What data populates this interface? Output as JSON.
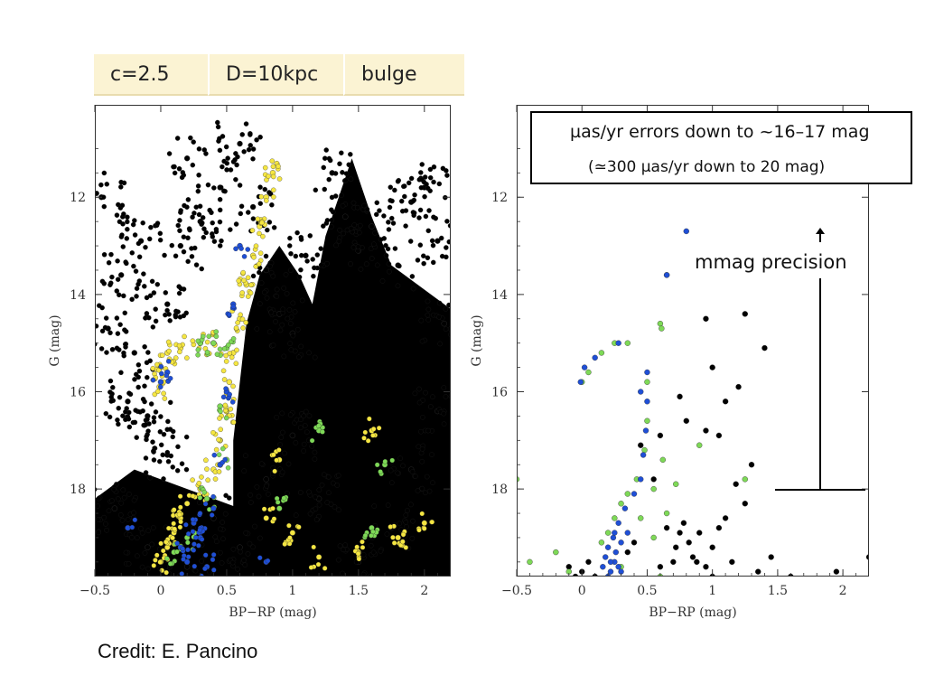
{
  "params": [
    "c=2.5",
    "D=10kpc",
    "bulge"
  ],
  "info_box": {
    "line1": "µas/yr errors down to ~16–17 mag",
    "line2": "(≃300 µas/yr down to 20 mag)"
  },
  "precision_label": "mmag precision",
  "credit": "Credit: E. Pancino",
  "colors": {
    "field_stars": "#000000",
    "cluster_yellow": "#f5e642",
    "cluster_green": "#7ed957",
    "cluster_blue": "#1f4fd6",
    "param_box_bg": "#fbf3d3"
  },
  "chart_data": [
    {
      "type": "scatter",
      "panel": "left",
      "xlabel": "BP−RP (mag)",
      "ylabel": "G (mag)",
      "xlim": [
        -0.5,
        2.2
      ],
      "ylim": [
        19.8,
        10.1
      ],
      "y_inverted": true,
      "xticks": [
        "−0.5",
        "0",
        "0.5",
        "1",
        "1.5",
        "2"
      ],
      "yticks": [
        "12",
        "14",
        "16",
        "18"
      ],
      "series": [
        {
          "color": "black",
          "description_points": [
            [
              -0.45,
              12
            ],
            [
              -0.3,
              13.6
            ],
            [
              -0.2,
              15.2
            ],
            [
              -0.1,
              16.5
            ],
            [
              0.05,
              17.3
            ],
            [
              0.2,
              11.2
            ],
            [
              0.3,
              12.5
            ],
            [
              0.45,
              11.8
            ],
            [
              0.6,
              10.9
            ],
            [
              0.7,
              12.2
            ],
            [
              0.8,
              13.5
            ],
            [
              0.9,
              14.4
            ],
            [
              1.0,
              14.8
            ],
            [
              1.1,
              13.2
            ],
            [
              1.3,
              11.5
            ],
            [
              1.4,
              12.4
            ],
            [
              1.5,
              13.1
            ],
            [
              1.6,
              12.6
            ],
            [
              1.8,
              13.4
            ],
            [
              1.9,
              12.1
            ],
            [
              2.0,
              11.8
            ],
            [
              2.1,
              12.9
            ],
            [
              2.15,
              14.6
            ],
            [
              2.1,
              16.4
            ],
            [
              1.9,
              17.6
            ],
            [
              1.75,
              18.8
            ],
            [
              1.5,
              19.5
            ],
            [
              1.2,
              18.2
            ],
            [
              1.0,
              16.9
            ],
            [
              0.8,
              17.8
            ],
            [
              0.6,
              19.2
            ],
            [
              0.4,
              18.6
            ],
            [
              0.2,
              19.6
            ],
            [
              -0.1,
              19.2
            ],
            [
              -0.35,
              18.4
            ],
            [
              -0.25,
              16.2
            ],
            [
              0.05,
              14.2
            ],
            [
              0.15,
              13.0
            ],
            [
              -0.4,
              14.7
            ],
            [
              -0.15,
              12.9
            ]
          ]
        },
        {
          "color": "yellow",
          "description_points": [
            [
              0.0,
              19.5
            ],
            [
              0.05,
              19.2
            ],
            [
              0.1,
              18.9
            ],
            [
              0.15,
              18.6
            ],
            [
              0.2,
              18.3
            ],
            [
              0.3,
              18.0
            ],
            [
              0.4,
              17.6
            ],
            [
              0.45,
              17.0
            ],
            [
              0.5,
              16.4
            ],
            [
              0.52,
              15.8
            ],
            [
              0.55,
              15.2
            ],
            [
              0.6,
              14.5
            ],
            [
              0.65,
              13.8
            ],
            [
              0.7,
              13.2
            ],
            [
              0.75,
              12.6
            ],
            [
              0.8,
              12.0
            ],
            [
              0.85,
              11.5
            ],
            [
              0.0,
              15.5
            ],
            [
              -0.01,
              15.9
            ],
            [
              0.05,
              15.2
            ],
            [
              0.15,
              15.1
            ],
            [
              0.3,
              15.0
            ],
            [
              0.4,
              15.0
            ],
            [
              0.8,
              18.6
            ],
            [
              1.0,
              18.9
            ],
            [
              1.2,
              19.4
            ],
            [
              1.5,
              19.3
            ],
            [
              1.8,
              19.0
            ],
            [
              2.0,
              18.7
            ],
            [
              0.9,
              17.4
            ],
            [
              1.6,
              16.8
            ]
          ]
        },
        {
          "color": "green",
          "description_points": [
            [
              0.3,
              15.0
            ],
            [
              0.4,
              15.0
            ],
            [
              0.5,
              15.1
            ],
            [
              0.2,
              19.0
            ],
            [
              0.35,
              18.2
            ],
            [
              0.5,
              17.4
            ],
            [
              0.9,
              18.4
            ],
            [
              1.2,
              16.8
            ],
            [
              1.6,
              18.8
            ],
            [
              1.7,
              17.5
            ],
            [
              0.1,
              19.3
            ],
            [
              0.45,
              16.3
            ]
          ]
        },
        {
          "color": "blue",
          "description_points": [
            [
              0.0,
              15.8
            ],
            [
              0.05,
              15.6
            ],
            [
              0.15,
              19.2
            ],
            [
              0.2,
              19.5
            ],
            [
              0.25,
              18.7
            ],
            [
              0.3,
              19.0
            ],
            [
              0.35,
              19.6
            ],
            [
              0.4,
              18.4
            ],
            [
              0.45,
              17.5
            ],
            [
              0.5,
              16.0
            ],
            [
              0.55,
              14.2
            ],
            [
              0.6,
              13.0
            ],
            [
              -0.25,
              18.8
            ],
            [
              0.8,
              19.5
            ]
          ]
        }
      ]
    },
    {
      "type": "scatter",
      "panel": "right",
      "xlabel": "BP−RP (mag)",
      "ylabel": "G (mag)",
      "xlim": [
        -0.5,
        2.2
      ],
      "ylim": [
        19.8,
        10.1
      ],
      "y_inverted": true,
      "xticks": [
        "−0.5",
        "0",
        "0.5",
        "1",
        "1.5",
        "2"
      ],
      "yticks": [
        "12",
        "14",
        "16",
        "18"
      ],
      "series": [
        {
          "color": "black",
          "points": [
            [
              0.82,
              19.1
            ],
            [
              0.78,
              18.7
            ],
            [
              0.9,
              18.9
            ],
            [
              1.0,
              19.2
            ],
            [
              0.7,
              19.5
            ],
            [
              0.85,
              19.4
            ],
            [
              1.1,
              18.6
            ],
            [
              0.95,
              19.6
            ],
            [
              0.75,
              18.9
            ],
            [
              1.05,
              18.8
            ],
            [
              0.88,
              19.5
            ],
            [
              0.72,
              19.2
            ],
            [
              1.15,
              19.5
            ],
            [
              0.6,
              19.6
            ],
            [
              0.65,
              18.8
            ],
            [
              1.0,
              15.5
            ],
            [
              0.95,
              16.8
            ],
            [
              1.2,
              15.9
            ],
            [
              1.25,
              14.4
            ],
            [
              1.4,
              15.1
            ],
            [
              1.1,
              16.2
            ],
            [
              1.05,
              16.9
            ],
            [
              0.75,
              16.1
            ],
            [
              0.8,
              16.6
            ],
            [
              0.6,
              16.9
            ],
            [
              1.3,
              17.5
            ],
            [
              1.18,
              17.9
            ],
            [
              1.25,
              18.3
            ],
            [
              1.45,
              19.4
            ],
            [
              1.6,
              19.8
            ],
            [
              1.95,
              19.7
            ],
            [
              2.2,
              19.4
            ],
            [
              1.35,
              19.7
            ],
            [
              0.0,
              19.7
            ],
            [
              0.05,
              19.5
            ],
            [
              -0.1,
              19.6
            ],
            [
              0.1,
              19.8
            ],
            [
              1.0,
              19.8
            ],
            [
              0.45,
              17.1
            ],
            [
              0.55,
              17.8
            ],
            [
              0.95,
              14.5
            ],
            [
              0.35,
              19.3
            ],
            [
              0.4,
              19.1
            ],
            [
              -0.05,
              19.8
            ]
          ]
        },
        {
          "color": "green",
          "points": [
            [
              -0.5,
              17.8
            ],
            [
              -0.4,
              19.5
            ],
            [
              -0.2,
              19.3
            ],
            [
              -0.1,
              19.7
            ],
            [
              0.0,
              15.8
            ],
            [
              0.05,
              15.6
            ],
            [
              0.15,
              15.2
            ],
            [
              0.25,
              15.0
            ],
            [
              0.35,
              15.0
            ],
            [
              0.6,
              14.6
            ],
            [
              0.61,
              14.7
            ],
            [
              0.65,
              13.6
            ],
            [
              0.5,
              15.8
            ],
            [
              0.5,
              16.6
            ],
            [
              0.48,
              17.2
            ],
            [
              0.42,
              17.8
            ],
            [
              0.35,
              18.1
            ],
            [
              0.3,
              18.3
            ],
            [
              0.25,
              18.6
            ],
            [
              0.2,
              18.9
            ],
            [
              0.15,
              19.1
            ],
            [
              0.55,
              18.0
            ],
            [
              0.45,
              18.6
            ],
            [
              0.65,
              18.5
            ],
            [
              0.55,
              19.0
            ],
            [
              0.62,
              17.4
            ],
            [
              0.72,
              17.9
            ],
            [
              0.9,
              17.1
            ],
            [
              1.25,
              17.8
            ],
            [
              0.3,
              19.6
            ],
            [
              0.6,
              19.8
            ]
          ]
        },
        {
          "color": "blue",
          "points": [
            [
              0.8,
              12.7
            ],
            [
              0.65,
              13.6
            ],
            [
              -0.01,
              15.8
            ],
            [
              0.02,
              15.5
            ],
            [
              0.1,
              15.3
            ],
            [
              0.28,
              15.0
            ],
            [
              0.5,
              16.2
            ],
            [
              0.49,
              16.8
            ],
            [
              0.47,
              17.3
            ],
            [
              0.45,
              17.8
            ],
            [
              0.4,
              18.1
            ],
            [
              0.33,
              18.4
            ],
            [
              0.28,
              18.7
            ],
            [
              0.24,
              19.0
            ],
            [
              0.2,
              19.2
            ],
            [
              0.18,
              19.4
            ],
            [
              0.16,
              19.6
            ],
            [
              0.22,
              19.7
            ],
            [
              0.25,
              19.5
            ],
            [
              0.28,
              19.6
            ],
            [
              0.3,
              19.7
            ],
            [
              0.2,
              19.8
            ],
            [
              0.26,
              19.3
            ],
            [
              0.3,
              19.1
            ],
            [
              0.35,
              18.9
            ],
            [
              0.25,
              18.9
            ],
            [
              0.22,
              19.5
            ],
            [
              0.45,
              16.0
            ],
            [
              0.5,
              15.6
            ]
          ]
        }
      ]
    }
  ]
}
